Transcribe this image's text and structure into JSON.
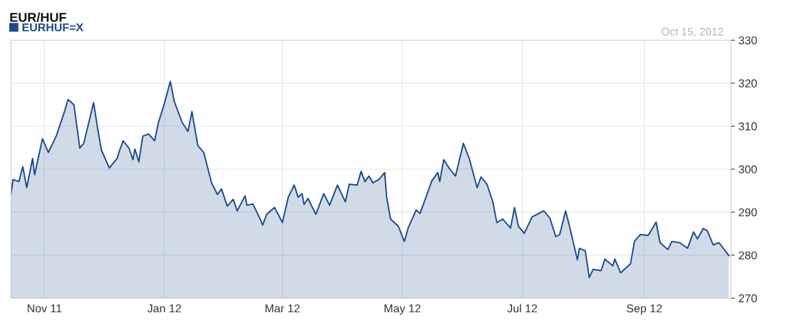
{
  "chart_data": {
    "type": "area",
    "title": "EUR/HUF",
    "annotations": [
      "Oct 15, 2012"
    ],
    "legend": "top left",
    "grid": true,
    "x": [
      "2011-10-15",
      "2011-10-16",
      "2011-10-19",
      "2011-10-21",
      "2011-10-23",
      "2011-10-26",
      "2011-10-27",
      "2011-10-31",
      "2011-11-03",
      "2011-11-07",
      "2011-11-11",
      "2011-11-13",
      "2011-11-16",
      "2011-11-19",
      "2011-11-21",
      "2011-11-26",
      "2011-11-28",
      "2011-11-30",
      "2011-12-04",
      "2011-12-08",
      "2011-12-09",
      "2011-12-11",
      "2011-12-14",
      "2011-12-16",
      "2011-12-17",
      "2011-12-19",
      "2011-12-21",
      "2011-12-24",
      "2011-12-27",
      "2011-12-29",
      "2012-01-01",
      "2012-01-04",
      "2012-01-06",
      "2012-01-10",
      "2012-01-13",
      "2012-01-15",
      "2012-01-18",
      "2012-01-21",
      "2012-01-25",
      "2012-01-28",
      "2012-01-30",
      "2012-02-02",
      "2012-02-05",
      "2012-02-07",
      "2012-02-11",
      "2012-02-12",
      "2012-02-15",
      "2012-02-19",
      "2012-02-20",
      "2012-02-22",
      "2012-02-26",
      "2012-03-01",
      "2012-03-04",
      "2012-03-07",
      "2012-03-09",
      "2012-03-11",
      "2012-03-12",
      "2012-03-14",
      "2012-03-18",
      "2012-03-22",
      "2012-03-25",
      "2012-03-29",
      "2012-04-02",
      "2012-04-04",
      "2012-04-08",
      "2012-04-10",
      "2012-04-12",
      "2012-04-14",
      "2012-04-16",
      "2012-04-19",
      "2012-04-22",
      "2012-04-23",
      "2012-04-25",
      "2012-04-29",
      "2012-05-02",
      "2012-05-04",
      "2012-05-08",
      "2012-05-10",
      "2012-05-13",
      "2012-05-16",
      "2012-05-19",
      "2012-05-20",
      "2012-05-22",
      "2012-05-25",
      "2012-05-28",
      "2012-05-30",
      "2012-06-01",
      "2012-06-04",
      "2012-06-08",
      "2012-06-10",
      "2012-06-13",
      "2012-06-16",
      "2012-06-18",
      "2012-06-21",
      "2012-06-25",
      "2012-06-27",
      "2012-06-29",
      "2012-07-02",
      "2012-07-06",
      "2012-07-12",
      "2012-07-15",
      "2012-07-18",
      "2012-07-20",
      "2012-07-23",
      "2012-07-25",
      "2012-07-29",
      "2012-07-30",
      "2012-08-02",
      "2012-08-04",
      "2012-08-06",
      "2012-08-10",
      "2012-08-12",
      "2012-08-16",
      "2012-08-17",
      "2012-08-20",
      "2012-08-25",
      "2012-08-27",
      "2012-08-30",
      "2012-09-03",
      "2012-09-07",
      "2012-09-09",
      "2012-09-13",
      "2012-09-15",
      "2012-09-19",
      "2012-09-23",
      "2012-09-26",
      "2012-09-28",
      "2012-10-01",
      "2012-10-03",
      "2012-10-06",
      "2012-10-09",
      "2012-10-14"
    ],
    "series": [
      {
        "name": "EURHUF=X",
        "color": "#1b4b8a",
        "values": [
          294.1,
          297.6,
          297.1,
          300.6,
          295.7,
          302.5,
          298.7,
          307.1,
          303.9,
          307.7,
          313.1,
          316.2,
          315.0,
          304.9,
          306.0,
          315.5,
          309.6,
          304.4,
          300.3,
          302.5,
          304.1,
          306.6,
          304.9,
          302.2,
          304.7,
          301.7,
          307.7,
          308.2,
          306.6,
          310.9,
          315.3,
          320.4,
          315.8,
          310.9,
          308.8,
          313.4,
          305.5,
          303.9,
          296.8,
          294.1,
          295.4,
          291.4,
          293.0,
          290.3,
          293.8,
          291.6,
          291.9,
          288.1,
          287.0,
          289.5,
          291.1,
          287.6,
          293.5,
          296.3,
          293.5,
          294.3,
          291.8,
          293.2,
          289.5,
          294.3,
          291.6,
          296.3,
          292.4,
          296.5,
          296.3,
          299.5,
          297.1,
          298.4,
          296.8,
          297.6,
          299.2,
          293.5,
          288.4,
          286.7,
          283.2,
          286.4,
          290.5,
          289.7,
          293.5,
          297.3,
          299.2,
          297.1,
          302.2,
          300.1,
          298.4,
          302.2,
          306.0,
          302.5,
          295.7,
          298.2,
          296.5,
          292.4,
          287.6,
          288.4,
          286.3,
          291.1,
          286.7,
          285.1,
          288.9,
          290.3,
          288.6,
          284.3,
          284.8,
          290.3,
          286.7,
          278.9,
          281.6,
          281.0,
          274.8,
          276.7,
          276.4,
          279.1,
          277.5,
          279.1,
          275.9,
          278.0,
          283.2,
          284.8,
          284.6,
          287.7,
          282.9,
          281.3,
          283.2,
          282.9,
          281.6,
          285.4,
          283.8,
          286.2,
          285.7,
          282.4,
          282.9,
          279.9
        ]
      }
    ],
    "xlim": [
      "2011-10-15",
      "2012-10-15"
    ],
    "xticks": [
      {
        "value": "2011-11-01",
        "label": "Nov 11"
      },
      {
        "value": "2012-01-01",
        "label": "Jan 12"
      },
      {
        "value": "2012-03-01",
        "label": "Mar 12"
      },
      {
        "value": "2012-05-01",
        "label": "May 12"
      },
      {
        "value": "2012-07-01",
        "label": "Jul 12"
      },
      {
        "value": "2012-09-01",
        "label": "Sep 12"
      }
    ],
    "ylim": [
      270,
      330
    ],
    "yticks": [
      270,
      280,
      290,
      300,
      310,
      320,
      330
    ]
  }
}
